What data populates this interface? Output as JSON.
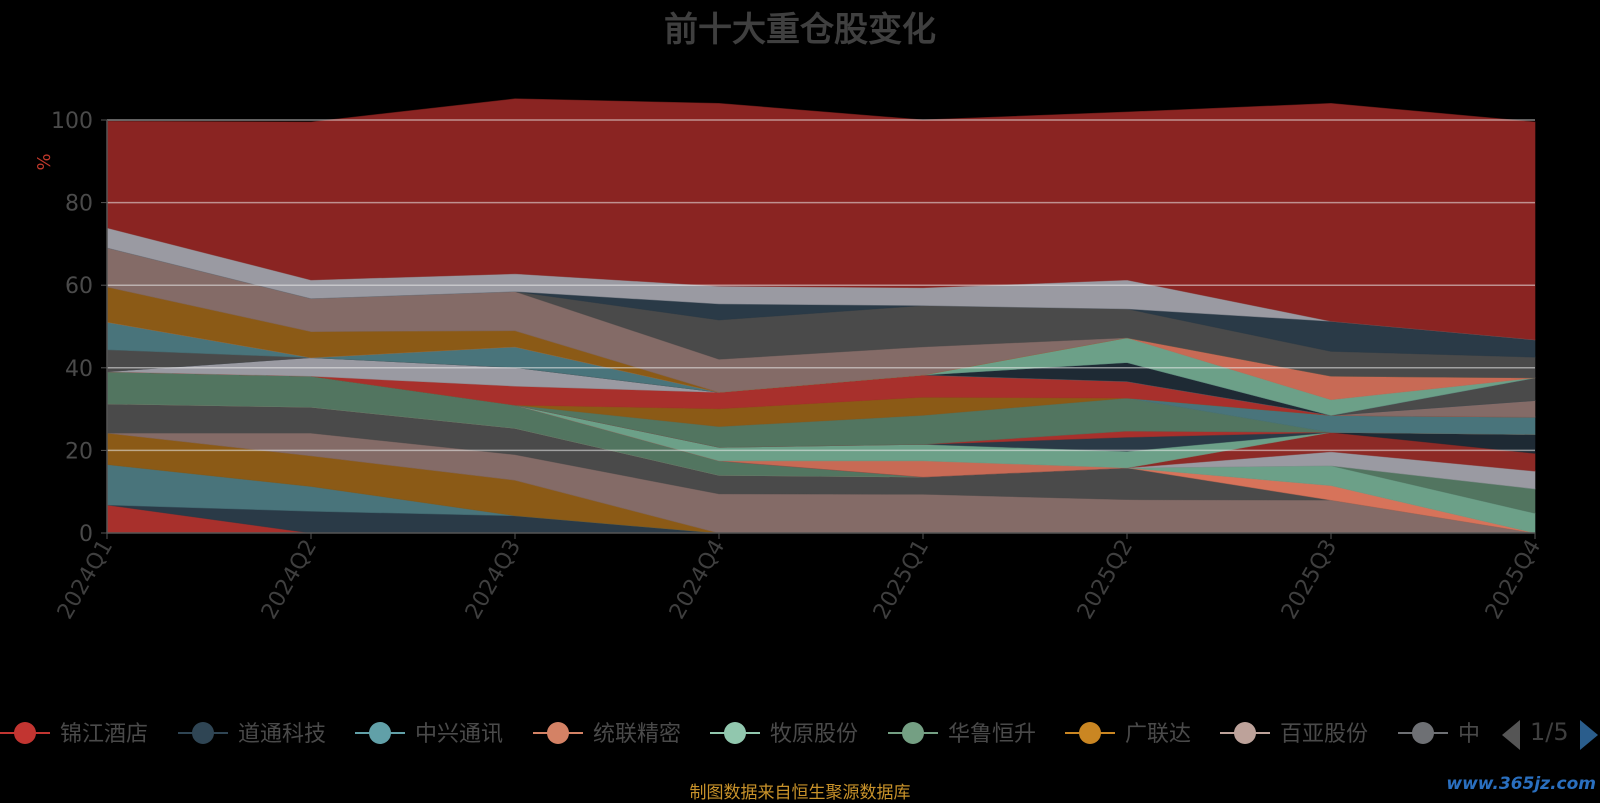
{
  "title": "前十大重仓股变化",
  "chart_data": {
    "type": "area",
    "stacked": true,
    "title": "前十大重仓股变化",
    "ylabel": "%",
    "xlabel": "",
    "ylim": [
      0,
      100
    ],
    "y_ticks": [
      0,
      20,
      40,
      60,
      80,
      100
    ],
    "x": [
      "2024Q1",
      "2024Q2",
      "2024Q3",
      "2024Q4",
      "2025Q1",
      "2025Q2",
      "2025Q3",
      "2025Q4"
    ],
    "grid": true,
    "series_bottom_to_top": [
      {
        "color": "#a8302c",
        "values": [
          6.8,
          0,
          0,
          0,
          0,
          0,
          0,
          0
        ]
      },
      {
        "color": "#2a3a47",
        "values": [
          0,
          5.3,
          4.2,
          0,
          0,
          0,
          0,
          0
        ]
      },
      {
        "color": "#49747b",
        "values": [
          9.8,
          6.0,
          0,
          0,
          0,
          0,
          0,
          0
        ]
      },
      {
        "color": "#8b5a16",
        "values": [
          7.6,
          7.4,
          8.6,
          0,
          0,
          0,
          0,
          0
        ]
      },
      {
        "color": "#846b67",
        "values": [
          0,
          5.5,
          6.2,
          9.5,
          9.4,
          8.1,
          8.0,
          0
        ]
      },
      {
        "color": "#4a4a4a",
        "values": [
          7.1,
          6.3,
          6.4,
          4.5,
          4.2,
          7.7,
          0,
          0
        ]
      },
      {
        "color": "#d7735a",
        "values": [
          0,
          0,
          0,
          0,
          0,
          0,
          3.5,
          0
        ]
      },
      {
        "color": "#6ca088",
        "values": [
          0,
          0,
          0,
          0,
          0,
          0,
          4.8,
          4.8
        ]
      },
      {
        "color": "#527560",
        "values": [
          7.8,
          7.5,
          5.6,
          3.5,
          0,
          0,
          0,
          5.9
        ]
      },
      {
        "color": "#9a9aa2",
        "values": [
          0,
          0,
          0,
          0,
          0,
          0,
          3.4,
          4.3
        ]
      },
      {
        "color": "#8d2a26",
        "values": [
          0,
          0,
          0,
          0,
          0,
          0,
          4.7,
          4.3
        ]
      },
      {
        "color": "#1e2a34",
        "values": [
          0,
          0,
          0,
          0,
          0,
          0,
          0,
          4.6
        ]
      },
      {
        "color": "#c86a55",
        "values": [
          0,
          0,
          0,
          0,
          3.9,
          0,
          0,
          0
        ]
      },
      {
        "color": "#6ca088",
        "values": [
          0,
          0,
          0,
          3.3,
          4.0,
          4.0,
          0,
          0
        ]
      },
      {
        "color": "#2a3a47",
        "values": [
          0,
          0,
          0,
          0,
          0,
          3.4,
          0,
          0
        ]
      },
      {
        "color": "#a8302c",
        "values": [
          0,
          0,
          0,
          0,
          0,
          1.5,
          0,
          0
        ]
      },
      {
        "color": "#527560",
        "values": [
          0,
          0,
          0,
          5.0,
          7.0,
          8.0,
          0,
          0
        ]
      },
      {
        "color": "#49747b",
        "values": [
          0,
          0,
          0,
          0,
          0,
          0,
          4.1,
          4.2
        ]
      },
      {
        "color": "#8b5a16",
        "values": [
          0,
          0,
          0,
          4.3,
          4.4,
          0,
          0,
          0
        ]
      },
      {
        "color": "#a8302c",
        "values": [
          0,
          0,
          4.6,
          4.0,
          5.4,
          4.0,
          0,
          0
        ]
      },
      {
        "color": "#846b67",
        "values": [
          0,
          0,
          0,
          0,
          0,
          0,
          0,
          4.0
        ]
      },
      {
        "color": "#9a9aa2",
        "values": [
          0,
          4.5,
          4.5,
          0,
          0,
          0,
          0,
          0
        ]
      },
      {
        "color": "#1e2a34",
        "values": [
          0,
          0,
          0,
          0,
          0,
          4.6,
          0,
          0
        ]
      },
      {
        "color": "#4a4a4a",
        "values": [
          5.3,
          0,
          0,
          0,
          0,
          0,
          0,
          5.5
        ]
      },
      {
        "color": "#49747b",
        "values": [
          6.7,
          0,
          5.0,
          0,
          0,
          0,
          0,
          0
        ]
      },
      {
        "color": "#6ca088",
        "values": [
          0,
          0,
          0,
          0,
          0,
          6.0,
          3.8,
          0
        ]
      },
      {
        "color": "#c86a55",
        "values": [
          0,
          0,
          0,
          0,
          0,
          0,
          5.7,
          0
        ]
      },
      {
        "color": "#8b5a16",
        "values": [
          8.5,
          6.3,
          3.9,
          0,
          0,
          0,
          0,
          0
        ]
      },
      {
        "color": "#846b67",
        "values": [
          9.5,
          8.0,
          9.5,
          8.0,
          6.8,
          0,
          0,
          0
        ]
      },
      {
        "color": "#4a4a4a",
        "values": [
          0,
          0,
          0,
          9.5,
          10.0,
          7.0,
          6.0,
          5.0
        ]
      },
      {
        "color": "#2a3a47",
        "values": [
          0,
          0,
          0,
          3.9,
          0,
          0,
          7.3,
          4.2
        ]
      },
      {
        "color": "#9a9aa2",
        "values": [
          4.8,
          4.5,
          4.3,
          4.3,
          4.3,
          7.0,
          0,
          0
        ]
      },
      {
        "color": "#8a2422",
        "values": [
          25.8,
          38.2,
          42.3,
          44.2,
          40.6,
          40.6,
          52.7,
          52.7
        ]
      }
    ],
    "legend": {
      "position": "bottom",
      "page": "1/5",
      "items": [
        {
          "name": "锦江酒店",
          "color": "#c23531"
        },
        {
          "name": "道通科技",
          "color": "#2f4554"
        },
        {
          "name": "中兴通讯",
          "color": "#61a0a8"
        },
        {
          "name": "统联精密",
          "color": "#d48265"
        },
        {
          "name": "牧原股份",
          "color": "#91c7ae"
        },
        {
          "name": "华鲁恒升",
          "color": "#749f83"
        },
        {
          "name": "广联达",
          "color": "#ca8622"
        },
        {
          "name": "百亚股份",
          "color": "#bda29a"
        },
        {
          "name": "中",
          "color": "#6e7074"
        }
      ]
    }
  },
  "source_note": "制图数据来自恒生聚源数据库",
  "watermark": "www.365jz.com"
}
